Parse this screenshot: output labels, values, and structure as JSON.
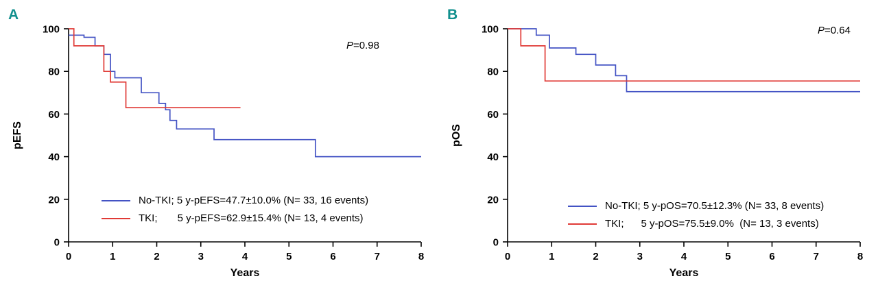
{
  "figure": {
    "background": "#ffffff",
    "panel_label_color": "#12908e",
    "axis_color": "#000000"
  },
  "chart_data": [
    {
      "type": "line",
      "subtype": "kaplan-meier-step",
      "panel_label": "A",
      "xlabel": "Years",
      "ylabel": "pEFS",
      "xlim": [
        0,
        8
      ],
      "ylim": [
        0,
        100
      ],
      "xticks": [
        0,
        1,
        2,
        3,
        4,
        5,
        6,
        7,
        8
      ],
      "yticks": [
        0,
        20,
        40,
        60,
        80,
        100
      ],
      "grid": false,
      "legend_position": "inside-bottom",
      "p_value": {
        "italic": "P",
        "rest": "=0.98"
      },
      "series": [
        {
          "name": "No-TKI",
          "color": "#4353c4",
          "label": "No-TKI; 5 y-pEFS=47.7±10.0% (N= 33, 16 events)",
          "step_points": [
            [
              0,
              97
            ],
            [
              0.35,
              96
            ],
            [
              0.6,
              92
            ],
            [
              0.8,
              88
            ],
            [
              0.95,
              80
            ],
            [
              1.05,
              77
            ],
            [
              1.65,
              70
            ],
            [
              2.05,
              65
            ],
            [
              2.2,
              62
            ],
            [
              2.3,
              57
            ],
            [
              2.45,
              53
            ],
            [
              3.3,
              48
            ],
            [
              5.6,
              40
            ],
            [
              8,
              40
            ]
          ]
        },
        {
          "name": "TKI",
          "color": "#e03a36",
          "label": "TKI;       5 y-pEFS=62.9±15.4% (N= 13, 4 events)",
          "step_points": [
            [
              0,
              100
            ],
            [
              0.12,
              92
            ],
            [
              0.8,
              80
            ],
            [
              0.95,
              75
            ],
            [
              1.3,
              63
            ],
            [
              3.9,
              63
            ]
          ]
        }
      ]
    },
    {
      "type": "line",
      "subtype": "kaplan-meier-step",
      "panel_label": "B",
      "xlabel": "Years",
      "ylabel": "pOS",
      "xlim": [
        0,
        8
      ],
      "ylim": [
        0,
        100
      ],
      "xticks": [
        0,
        1,
        2,
        3,
        4,
        5,
        6,
        7,
        8
      ],
      "yticks": [
        0,
        20,
        40,
        60,
        80,
        100
      ],
      "grid": false,
      "legend_position": "inside-bottom",
      "p_value": {
        "italic": "P",
        "rest": "=0.64"
      },
      "series": [
        {
          "name": "No-TKI",
          "color": "#4353c4",
          "label": "No-TKI; 5 y-pOS=70.5±12.3% (N= 33, 8 events)",
          "step_points": [
            [
              0,
              100
            ],
            [
              0.65,
              97
            ],
            [
              0.95,
              91
            ],
            [
              1.55,
              88
            ],
            [
              2.0,
              83
            ],
            [
              2.45,
              78
            ],
            [
              2.7,
              70.5
            ],
            [
              8,
              70.5
            ]
          ]
        },
        {
          "name": "TKI",
          "color": "#e03a36",
          "label": "TKI;      5 y-pOS=75.5±9.0%  (N= 13, 3 events)",
          "step_points": [
            [
              0,
              100
            ],
            [
              0.3,
              92
            ],
            [
              0.85,
              75.5
            ],
            [
              8,
              75.5
            ]
          ]
        }
      ]
    }
  ]
}
